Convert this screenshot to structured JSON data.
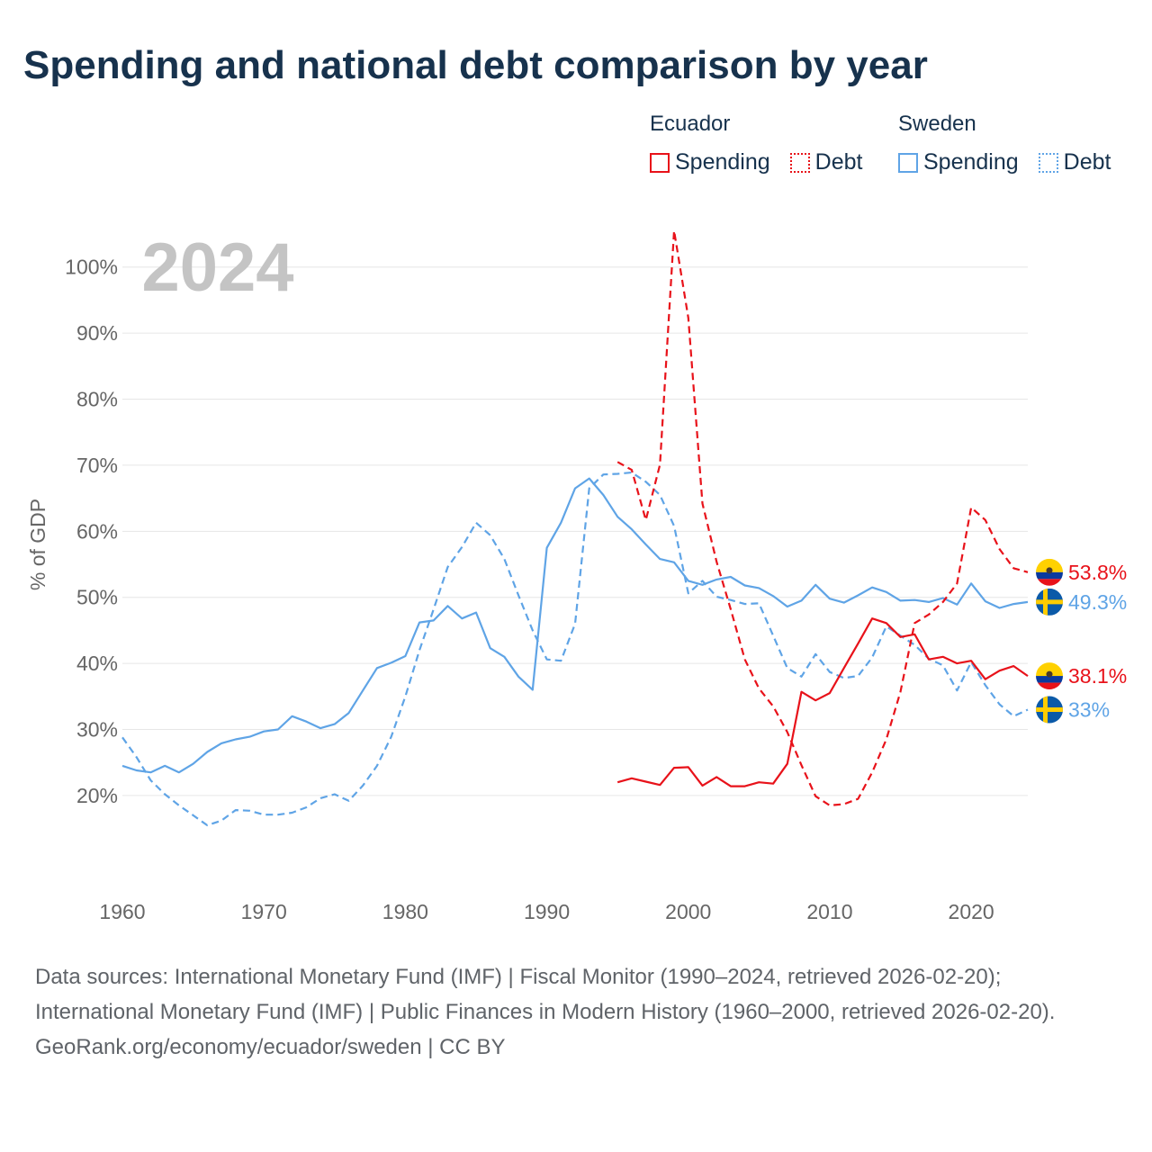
{
  "title": "Spending and national debt comparison by year",
  "legend": {
    "ecuador": {
      "name": "Ecuador",
      "spending": "Spending",
      "debt": "Debt"
    },
    "sweden": {
      "name": "Sweden",
      "spending": "Spending",
      "debt": "Debt"
    }
  },
  "colors": {
    "ecuador": "#e8121a",
    "sweden": "#5fa4e6",
    "grid": "#e6e6e6",
    "axis_text": "#666666",
    "year_watermark": "#c4c4c4",
    "title": "#17324d"
  },
  "footer": {
    "sources": "Data sources: International Monetary Fund (IMF) | Fiscal Monitor (1990–2024, retrieved 2026-02-20); International Monetary Fund (IMF) | Public Finances in Modern History (1960–2000, retrieved 2026-02-20).",
    "credit": "GeoRank.org/economy/ecuador/sweden | CC BY"
  },
  "chart_data": {
    "type": "line",
    "title": "Spending and national debt comparison by year",
    "year_label": "2024",
    "xlabel": "",
    "ylabel": "% of GDP",
    "xlim": [
      1960,
      2024
    ],
    "ylim": [
      8,
      108
    ],
    "x_ticks": [
      1960,
      1970,
      1980,
      1990,
      2000,
      2010,
      2020
    ],
    "x_tick_labels": [
      "1960",
      "1970",
      "1980",
      "1990",
      "2000",
      "2010",
      "2020"
    ],
    "y_ticks": [
      20,
      30,
      40,
      50,
      60,
      70,
      80,
      90,
      100
    ],
    "y_tick_labels": [
      "20%",
      "30%",
      "40%",
      "50%",
      "60%",
      "70%",
      "80%",
      "90%",
      "100%"
    ],
    "grid": true,
    "series": [
      {
        "name": "Sweden Spending",
        "country": "sweden",
        "style": "solid",
        "end_label": "49.3%",
        "start_year": 1960,
        "values": [
          24.5,
          23.8,
          23.5,
          24.5,
          23.5,
          24.8,
          26.6,
          27.9,
          28.5,
          28.9,
          29.7,
          30.0,
          32.0,
          31.2,
          30.2,
          30.8,
          32.5,
          35.9,
          39.3,
          40.1,
          41.1,
          46.2,
          46.5,
          48.7,
          46.8,
          47.7,
          42.3,
          41.0,
          38.0,
          36.0,
          57.5,
          61.3,
          66.5,
          68.0,
          65.5,
          62.2,
          60.3,
          58.0,
          55.8,
          55.3,
          52.5,
          51.9,
          52.7,
          53.1,
          51.8,
          51.4,
          50.2,
          48.6,
          49.5,
          51.9,
          49.8,
          49.2,
          50.3,
          51.5,
          50.8,
          49.5,
          49.6,
          49.3,
          49.9,
          48.9,
          52.1,
          49.4,
          48.4,
          49.0,
          49.3
        ]
      },
      {
        "name": "Sweden Debt",
        "country": "sweden",
        "style": "dashed",
        "end_label": "33%",
        "start_year": 1960,
        "values": [
          28.8,
          25.8,
          22.3,
          20.2,
          18.5,
          17.0,
          15.5,
          16.2,
          17.8,
          17.7,
          17.1,
          17.1,
          17.4,
          18.2,
          19.6,
          20.2,
          19.2,
          21.5,
          24.5,
          28.9,
          35.0,
          42.0,
          48.2,
          54.6,
          57.6,
          61.3,
          59.4,
          55.8,
          50.3,
          45.0,
          40.6,
          40.4,
          46.0,
          66.5,
          68.6,
          68.7,
          68.9,
          67.5,
          65.5,
          60.8,
          50.6,
          52.5,
          50.1,
          49.6,
          49.0,
          49.1,
          44.2,
          39.3,
          38.0,
          41.4,
          38.7,
          37.8,
          38.1,
          40.9,
          45.6,
          44.2,
          42.8,
          40.7,
          39.7,
          35.9,
          40.2,
          36.7,
          33.8,
          32.0,
          33.0
        ]
      },
      {
        "name": "Ecuador Spending",
        "country": "ecuador",
        "style": "solid",
        "end_label": "38.1%",
        "start_year": 1995,
        "values": [
          22.0,
          22.6,
          22.1,
          21.6,
          24.2,
          24.3,
          21.5,
          22.8,
          21.4,
          21.4,
          22.0,
          21.8,
          24.8,
          35.7,
          34.4,
          35.5,
          39.3,
          43.0,
          46.8,
          46.1,
          44.0,
          44.4,
          40.6,
          41.0,
          40.0,
          40.4,
          37.6,
          38.9,
          39.6,
          38.1
        ]
      },
      {
        "name": "Ecuador Debt",
        "country": "ecuador",
        "style": "dashed",
        "end_label": "53.8%",
        "start_year": 1995,
        "values": [
          70.5,
          69.3,
          61.7,
          70.1,
          105.5,
          92.3,
          64.2,
          55.4,
          48.2,
          40.6,
          36.2,
          33.5,
          29.6,
          24.6,
          19.9,
          18.5,
          18.7,
          19.5,
          23.5,
          28.5,
          35.7,
          46.1,
          47.4,
          49.3,
          52.1,
          63.6,
          61.7,
          57.3,
          54.4,
          53.8
        ]
      }
    ]
  }
}
